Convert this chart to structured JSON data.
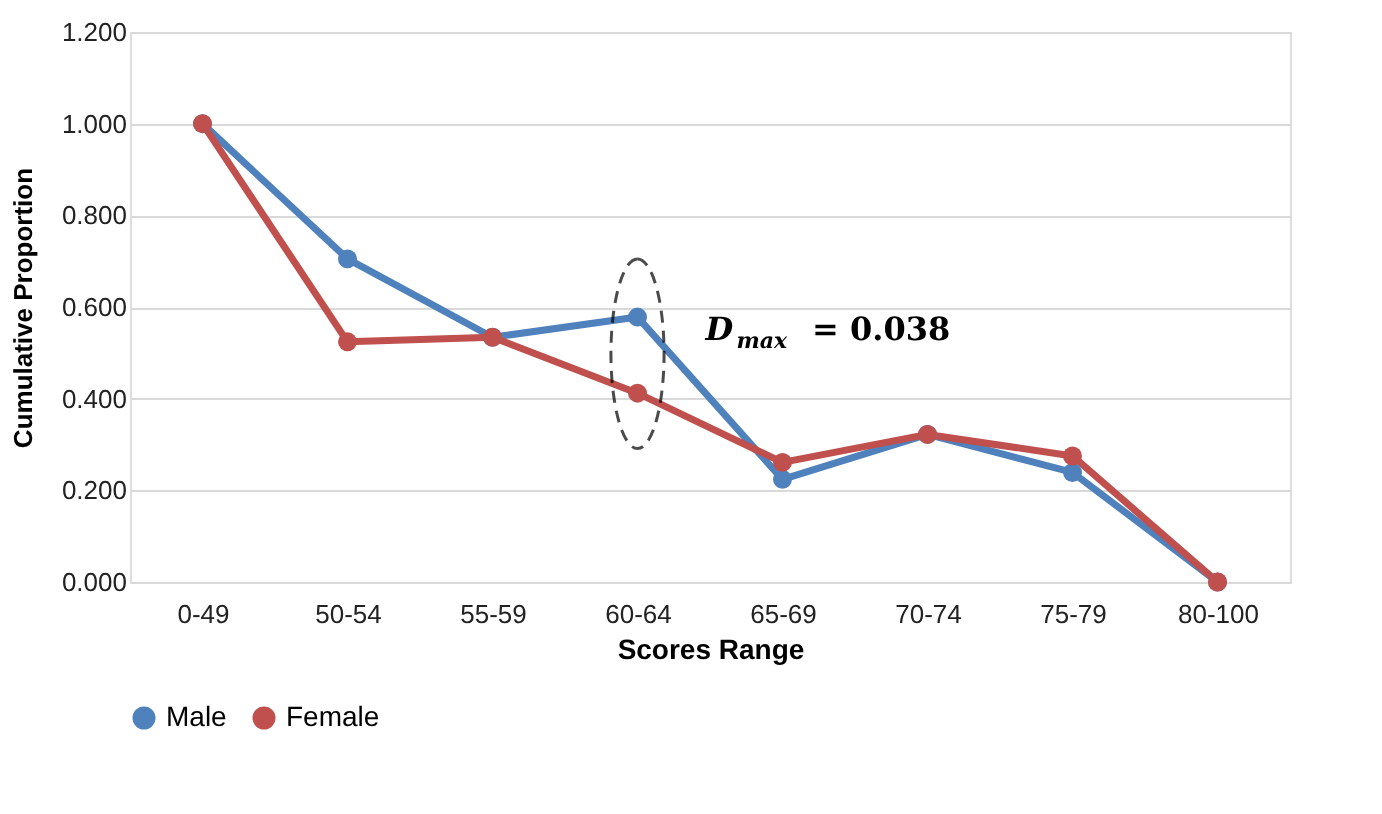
{
  "chart_data": {
    "type": "line",
    "xlabel": "Scores Range",
    "ylabel": "Cumulative Proportion",
    "categories": [
      "0-49",
      "50-54",
      "55-59",
      "60-64",
      "65-69",
      "70-74",
      "75-79",
      "80-100"
    ],
    "series": [
      {
        "name": "Male",
        "color": "#4f81bd",
        "values": [
          1.0,
          0.705,
          0.534,
          0.578,
          0.224,
          0.322,
          0.239,
          0.0
        ]
      },
      {
        "name": "Female",
        "color": "#c0504d",
        "values": [
          1.0,
          0.524,
          0.534,
          0.412,
          0.261,
          0.322,
          0.275,
          0.0
        ]
      }
    ],
    "ylim": [
      0,
      1.2
    ],
    "yticks": [
      {
        "value": 0,
        "label": "0.000"
      },
      {
        "value": 0.2,
        "label": "0.200"
      },
      {
        "value": 0.4,
        "label": "0.400"
      },
      {
        "value": 0.6,
        "label": "0.600"
      },
      {
        "value": 0.8,
        "label": "0.800"
      },
      {
        "value": 1.0,
        "label": "1.000"
      },
      {
        "value": 1.2,
        "label": "1.200"
      }
    ],
    "annotations": [
      "D$_{max}$ = 0.038"
    ],
    "grid": "y",
    "legend": "bottom",
    "marker": "circle",
    "line_style": "solid"
  }
}
